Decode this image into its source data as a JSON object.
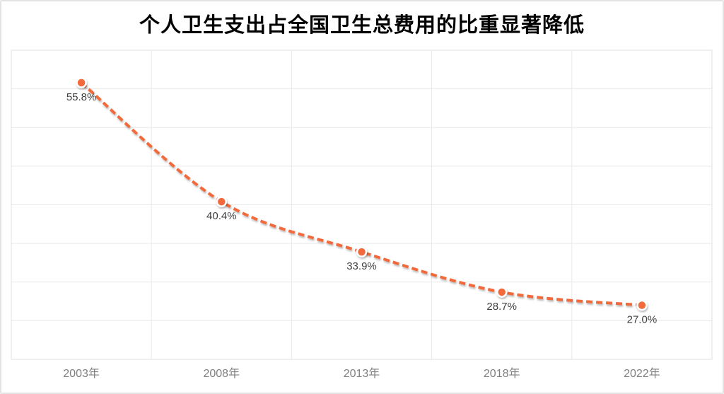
{
  "page": {
    "background": "#FFFFFF",
    "outer_border_color": "#E3E3E3"
  },
  "chart_data": {
    "type": "line",
    "title": "个人卫生支出占全国卫生总费用的比重显著降低",
    "categories": [
      "2003年",
      "2008年",
      "2013年",
      "2018年",
      "2022年"
    ],
    "series": [
      {
        "values": [
          55.8,
          40.4,
          33.9,
          28.7,
          27.0
        ],
        "data_labels": [
          "55.8%",
          "40.4%",
          "33.9%",
          "28.7%",
          "27.0%"
        ]
      }
    ],
    "xlabel": "",
    "ylabel": "",
    "ylim": [
      20,
      60
    ],
    "y_major_unit": 5,
    "y_tick_labels_visible": false,
    "grid": true,
    "legend_position": "none",
    "line_style": "dashed",
    "line_smooth": true,
    "data_label_position": "below",
    "colors": {
      "line": "#F2693B",
      "marker_fill": "#F2693B",
      "marker_border": "#FFFFFF",
      "grid": "#E9E9E9",
      "plot_border": "#E2E2E2",
      "data_label": "#3F3F3F",
      "axis_label": "#7F7F7F",
      "title": "#000000"
    }
  }
}
